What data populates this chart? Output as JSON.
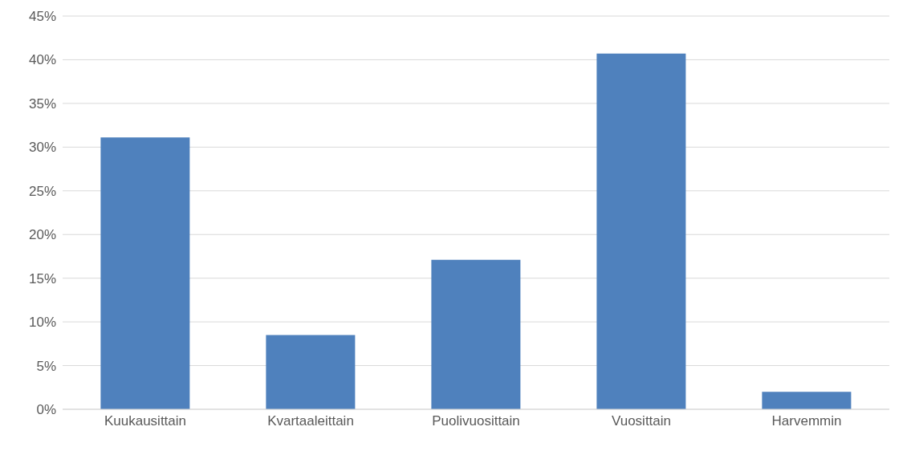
{
  "chart_data": {
    "type": "bar",
    "categories": [
      "Kuukausittain",
      "Kvartaaleittain",
      "Puolivuosittain",
      "Vuosittain",
      "Harvemmin"
    ],
    "values": [
      31.1,
      8.5,
      17.1,
      40.7,
      2.0
    ],
    "color": "#4f81bd",
    "ylim": [
      0,
      45
    ],
    "yticks": [
      {
        "value": 0,
        "label": "0%"
      },
      {
        "value": 5,
        "label": "5%"
      },
      {
        "value": 10,
        "label": "10%"
      },
      {
        "value": 15,
        "label": "15%"
      },
      {
        "value": 20,
        "label": "20%"
      },
      {
        "value": 25,
        "label": "25%"
      },
      {
        "value": 30,
        "label": "30%"
      },
      {
        "value": 35,
        "label": "35%"
      },
      {
        "value": 40,
        "label": "40%"
      },
      {
        "value": 45,
        "label": "45%"
      }
    ],
    "grid": "y"
  }
}
